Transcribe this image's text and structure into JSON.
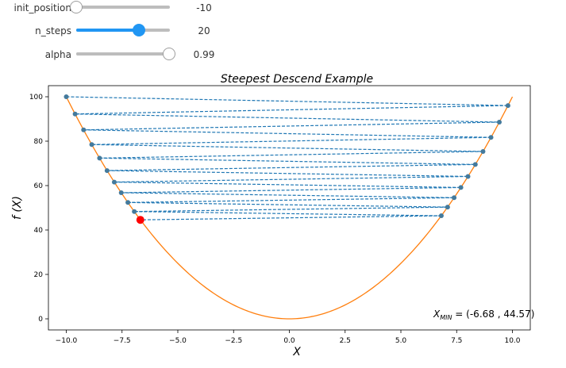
{
  "sliders": [
    {
      "id": "init_position",
      "label": "init_position",
      "value": -10,
      "display": "-10",
      "min": -10,
      "max": 10
    },
    {
      "id": "n_steps",
      "label": "n_steps",
      "value": 20,
      "display": "20",
      "min": 0,
      "max": 30
    },
    {
      "id": "alpha",
      "label": "alpha",
      "value": 0.99,
      "display": "0.99",
      "min": 0,
      "max": 1
    }
  ],
  "colors": {
    "curve": "#ff7f0e",
    "path": "#1f77b4",
    "final": "#ff0000",
    "slider_accent": "#2196f3"
  },
  "chart_data": {
    "type": "line",
    "title": "Steepest Descend Example",
    "xlabel": "X",
    "ylabel": "f (X)",
    "xlim": [
      -10.8,
      10.8
    ],
    "ylim": [
      -5,
      105
    ],
    "xticks": [
      -10.0,
      -7.5,
      -5.0,
      -2.5,
      0.0,
      2.5,
      5.0,
      7.5,
      10.0
    ],
    "xtick_labels": [
      "−10.0",
      "−7.5",
      "−5.0",
      "−2.5",
      "0.0",
      "2.5",
      "5.0",
      "7.5",
      "10.0"
    ],
    "yticks": [
      0,
      20,
      40,
      60,
      80,
      100
    ],
    "ytick_labels": [
      "0",
      "20",
      "40",
      "60",
      "80",
      "100"
    ],
    "curve": {
      "function": "x^2",
      "x_range": [
        -10,
        10
      ]
    },
    "path_points": [
      [
        -10.0,
        100.0
      ],
      [
        9.8,
        96.04
      ],
      [
        -9.604,
        92.24
      ],
      [
        9.412,
        88.58
      ],
      [
        -9.224,
        85.08
      ],
      [
        9.039,
        81.71
      ],
      [
        -8.858,
        78.47
      ],
      [
        8.681,
        75.36
      ],
      [
        -8.508,
        72.38
      ],
      [
        8.337,
        69.51
      ],
      [
        -8.171,
        66.76
      ],
      [
        8.007,
        64.12
      ],
      [
        -7.847,
        61.58
      ],
      [
        7.69,
        59.14
      ],
      [
        -7.536,
        56.79
      ],
      [
        7.386,
        54.55
      ],
      [
        -7.238,
        52.39
      ],
      [
        7.093,
        50.31
      ],
      [
        -6.951,
        48.32
      ],
      [
        6.812,
        46.41
      ],
      [
        -6.676,
        44.57
      ]
    ],
    "final_point": [
      -6.68,
      44.57
    ],
    "annotation": {
      "label_main": "X",
      "label_sub": "MIN",
      "text": " = (-6.68 , 44.57)"
    }
  }
}
